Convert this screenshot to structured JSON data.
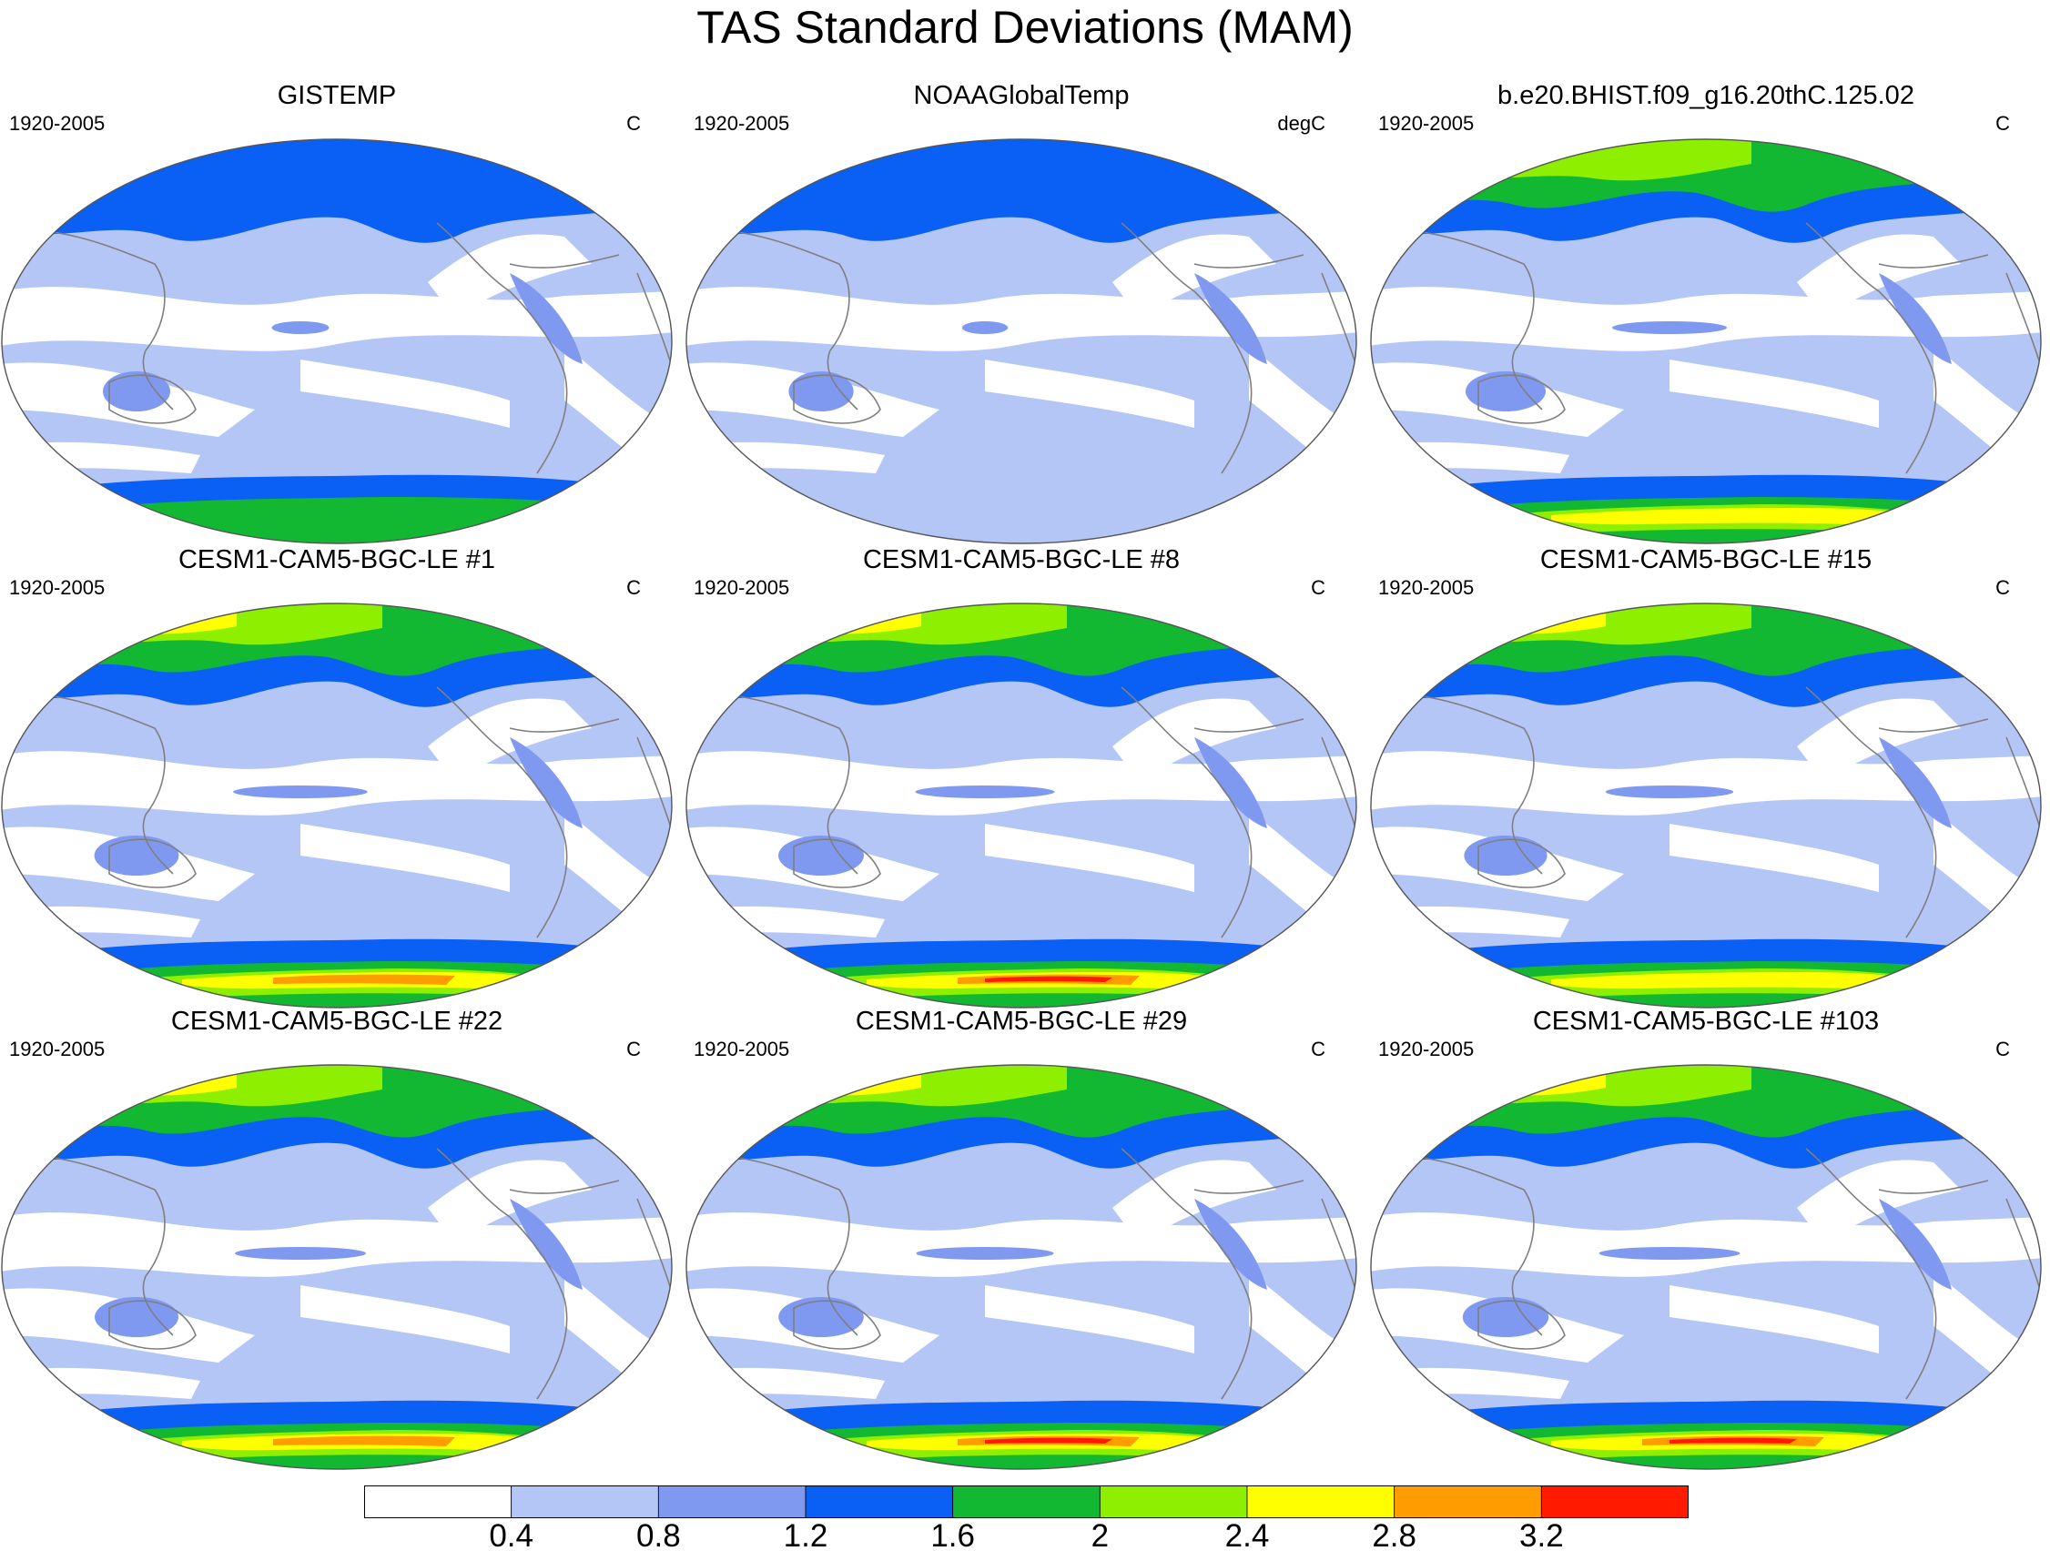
{
  "figure": {
    "title": "TAS Standard Deviations (MAM)"
  },
  "colors": {
    "levels": [
      "#ffffff",
      "#b4c6f6",
      "#7f98f0",
      "#0a5ff4",
      "#12b832",
      "#8ef000",
      "#ffff00",
      "#ff9d00",
      "#ff1a00"
    ],
    "coastline": "#7f7f7f",
    "outline": "#555555"
  },
  "chart_data": {
    "type": "map",
    "title": "TAS Standard Deviations (MAM)",
    "variable": "TAS standard deviation",
    "season": "MAM",
    "colorbar": {
      "levels": [
        0.4,
        0.8,
        1.2,
        1.6,
        2,
        2.4,
        2.8,
        3.2
      ],
      "labels": [
        "0.4",
        "0.8",
        "1.2",
        "1.6",
        "2",
        "2.4",
        "2.8",
        "3.2"
      ]
    },
    "panels": [
      {
        "title": "GISTEMP",
        "period": "1920-2005",
        "units": "C",
        "intensity": 0.35,
        "southern_cap": true
      },
      {
        "title": "NOAAGlobalTemp",
        "period": "1920-2005",
        "units": "degC",
        "intensity": 0.28,
        "southern_cap": false
      },
      {
        "title": "b.e20.BHIST.f09_g16.20thC.125.02",
        "period": "1920-2005",
        "units": "C",
        "intensity": 0.7,
        "southern_cap": true
      },
      {
        "title": "CESM1-CAM5-BGC-LE #1",
        "period": "1920-2005",
        "units": "C",
        "intensity": 0.82,
        "southern_cap": true
      },
      {
        "title": "CESM1-CAM5-BGC-LE #8",
        "period": "1920-2005",
        "units": "C",
        "intensity": 0.85,
        "southern_cap": true
      },
      {
        "title": "CESM1-CAM5-BGC-LE #15",
        "period": "1920-2005",
        "units": "C",
        "intensity": 0.78,
        "southern_cap": true
      },
      {
        "title": "CESM1-CAM5-BGC-LE #22",
        "period": "1920-2005",
        "units": "C",
        "intensity": 0.8,
        "southern_cap": true
      },
      {
        "title": "CESM1-CAM5-BGC-LE #29",
        "period": "1920-2005",
        "units": "C",
        "intensity": 0.84,
        "southern_cap": true
      },
      {
        "title": "CESM1-CAM5-BGC-LE #103",
        "period": "1920-2005",
        "units": "C",
        "intensity": 0.86,
        "southern_cap": true
      }
    ]
  }
}
